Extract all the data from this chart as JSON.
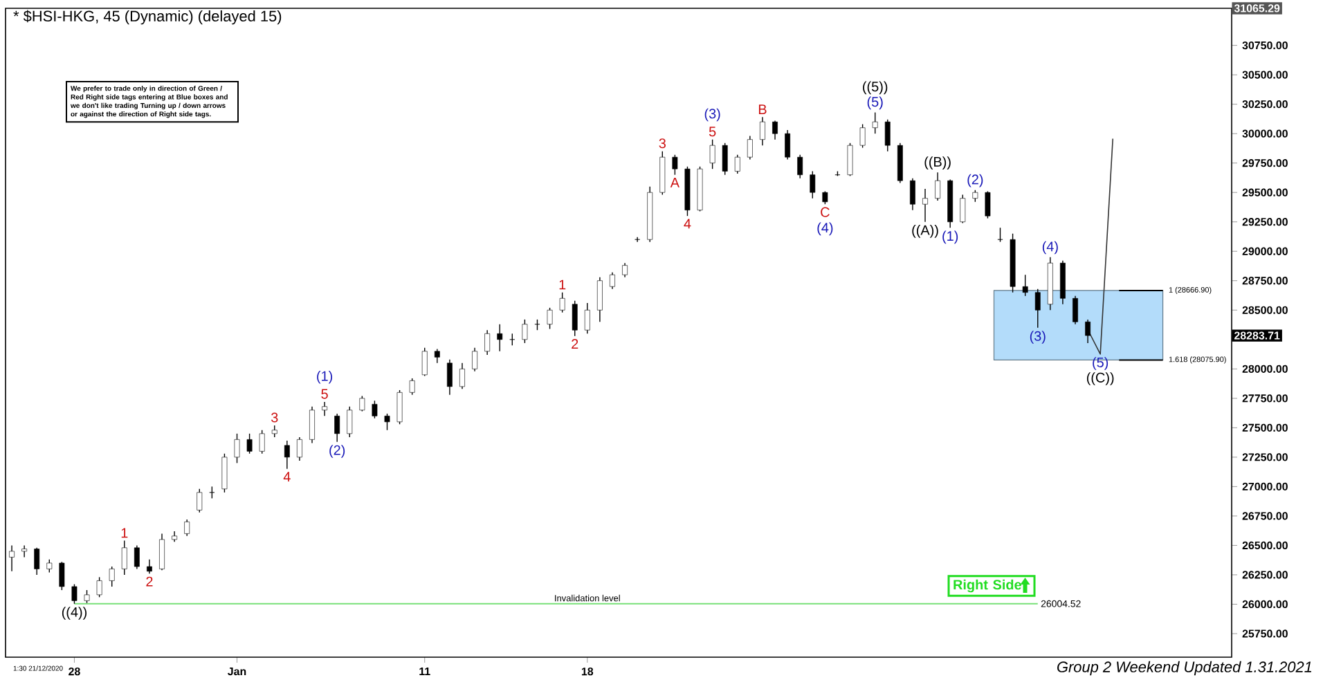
{
  "chart_data": {
    "type": "candlestick",
    "title": "* $HSI-HKG, 45 (Dynamic) (delayed 15)",
    "categories": [
      null,
      null,
      null,
      null,
      null,
      "28",
      null,
      null,
      null,
      null,
      null,
      null,
      null,
      null,
      null,
      null,
      null,
      null,
      "Jan",
      null,
      null,
      null,
      null,
      null,
      null,
      null,
      null,
      null,
      null,
      null,
      null,
      null,
      null,
      "11",
      null,
      null,
      null,
      null,
      null,
      null,
      null,
      null,
      null,
      null,
      null,
      null,
      "18",
      null,
      null,
      null,
      null,
      null,
      null,
      null,
      null,
      null,
      null,
      null,
      null,
      null,
      null,
      null,
      null,
      null,
      null,
      null,
      null,
      null,
      null,
      null,
      null,
      null,
      null,
      null,
      null,
      null,
      null,
      null,
      null,
      null,
      null,
      null,
      null,
      null,
      null,
      null,
      null,
      null,
      null,
      null,
      null,
      null,
      null,
      null,
      null,
      null,
      null,
      null
    ],
    "ohlc": [
      [
        26400,
        26500,
        26280,
        26450
      ],
      [
        26450,
        26500,
        26400,
        26470
      ],
      [
        26470,
        26480,
        26250,
        26300
      ],
      [
        26300,
        26380,
        26270,
        26350
      ],
      [
        26350,
        26360,
        26120,
        26150
      ],
      [
        26150,
        26170,
        26004,
        26030
      ],
      [
        26030,
        26120,
        26010,
        26080
      ],
      [
        26080,
        26230,
        26060,
        26200
      ],
      [
        26200,
        26320,
        26150,
        26300
      ],
      [
        26300,
        26540,
        26250,
        26480
      ],
      [
        26480,
        26500,
        26300,
        26320
      ],
      [
        26320,
        26380,
        26260,
        26280
      ],
      [
        26300,
        26600,
        26290,
        26550
      ],
      [
        26550,
        26620,
        26530,
        26580
      ],
      [
        26600,
        26720,
        26580,
        26700
      ],
      [
        26800,
        26980,
        26780,
        26950
      ],
      [
        26950,
        27000,
        26900,
        26950
      ],
      [
        26980,
        27280,
        26950,
        27250
      ],
      [
        27250,
        27450,
        27200,
        27400
      ],
      [
        27400,
        27450,
        27280,
        27300
      ],
      [
        27300,
        27480,
        27280,
        27450
      ],
      [
        27450,
        27520,
        27420,
        27480
      ],
      [
        27350,
        27390,
        27150,
        27250
      ],
      [
        27250,
        27420,
        27220,
        27400
      ],
      [
        27400,
        27680,
        27370,
        27650
      ],
      [
        27650,
        27720,
        27600,
        27680
      ],
      [
        27600,
        27620,
        27380,
        27450
      ],
      [
        27450,
        27680,
        27420,
        27650
      ],
      [
        27650,
        27770,
        27640,
        27750
      ],
      [
        27700,
        27730,
        27580,
        27600
      ],
      [
        27600,
        27620,
        27480,
        27550
      ],
      [
        27550,
        27820,
        27530,
        27800
      ],
      [
        27800,
        27920,
        27780,
        27900
      ],
      [
        27950,
        28180,
        27940,
        28150
      ],
      [
        28150,
        28170,
        28050,
        28100
      ],
      [
        28050,
        28080,
        27780,
        27850
      ],
      [
        27850,
        28050,
        27830,
        28000
      ],
      [
        28000,
        28180,
        27980,
        28150
      ],
      [
        28150,
        28330,
        28120,
        28300
      ],
      [
        28300,
        28380,
        28150,
        28250
      ],
      [
        28250,
        28300,
        28200,
        28250
      ],
      [
        28250,
        28420,
        28220,
        28380
      ],
      [
        28380,
        28420,
        28330,
        28380
      ],
      [
        28380,
        28520,
        28340,
        28500
      ],
      [
        28500,
        28650,
        28480,
        28600
      ],
      [
        28550,
        28580,
        28280,
        28330
      ],
      [
        28330,
        28560,
        28300,
        28500
      ],
      [
        28500,
        28780,
        28400,
        28750
      ],
      [
        28700,
        28820,
        28680,
        28800
      ],
      [
        28800,
        28900,
        28780,
        28880
      ],
      [
        29100,
        29120,
        29080,
        29100
      ],
      [
        29100,
        29550,
        29080,
        29500
      ],
      [
        29500,
        29850,
        29480,
        29800
      ],
      [
        29800,
        29820,
        29650,
        29700
      ],
      [
        29700,
        29720,
        29300,
        29350
      ],
      [
        29350,
        29720,
        29340,
        29700
      ],
      [
        29750,
        29950,
        29700,
        29900
      ],
      [
        29900,
        29920,
        29650,
        29680
      ],
      [
        29680,
        29820,
        29660,
        29800
      ],
      [
        29800,
        29980,
        29780,
        29950
      ],
      [
        29950,
        30140,
        29900,
        30100
      ],
      [
        30100,
        30110,
        29950,
        30000
      ],
      [
        30000,
        30030,
        29780,
        29800
      ],
      [
        29800,
        29820,
        29620,
        29650
      ],
      [
        29650,
        29680,
        29450,
        29500
      ],
      [
        29500,
        29510,
        29400,
        29420
      ],
      [
        29650,
        29680,
        29640,
        29650
      ],
      [
        29650,
        29920,
        29640,
        29900
      ],
      [
        29900,
        30080,
        29880,
        30050
      ],
      [
        30050,
        30180,
        30000,
        30100
      ],
      [
        30100,
        30120,
        29850,
        29900
      ],
      [
        29900,
        29920,
        29580,
        29600
      ],
      [
        29600,
        29620,
        29350,
        29400
      ],
      [
        29400,
        29530,
        29250,
        29450
      ],
      [
        29450,
        29670,
        29430,
        29600
      ],
      [
        29600,
        29610,
        29200,
        29250
      ],
      [
        29250,
        29480,
        29240,
        29450
      ],
      [
        29450,
        29520,
        29420,
        29500
      ],
      [
        29500,
        29510,
        29280,
        29300
      ],
      [
        29100,
        29200,
        29080,
        29100
      ],
      [
        29100,
        29150,
        28650,
        28700
      ],
      [
        28700,
        28800,
        28620,
        28650
      ],
      [
        28650,
        28680,
        28350,
        28500
      ],
      [
        28550,
        28950,
        28500,
        28900
      ],
      [
        28900,
        28920,
        28550,
        28600
      ],
      [
        28600,
        28620,
        28380,
        28400
      ],
      [
        28400,
        28420,
        28220,
        28283.71
      ],
      null,
      null,
      null,
      null,
      null,
      null,
      null,
      null,
      null,
      null,
      null
    ],
    "series": [
      {
        "type": "line",
        "values": [
          null,
          null,
          null,
          null,
          null,
          null,
          null,
          null,
          null,
          null,
          null,
          null,
          null,
          null,
          null,
          null,
          null,
          null,
          null,
          null,
          null,
          null,
          null,
          null,
          null,
          null,
          null,
          null,
          null,
          null,
          null,
          null,
          null,
          null,
          null,
          null,
          null,
          null,
          null,
          null,
          null,
          null,
          null,
          null,
          null,
          null,
          null,
          null,
          null,
          null,
          null,
          null,
          null,
          null,
          null,
          null,
          null,
          null,
          null,
          null,
          null,
          null,
          null,
          null,
          null,
          null,
          null,
          null,
          null,
          null,
          null,
          null,
          null,
          null,
          null,
          null,
          null,
          null,
          null,
          null,
          null,
          null,
          null,
          null,
          null,
          null,
          28334,
          28126,
          29957,
          null,
          null,
          null,
          null,
          null,
          null,
          null,
          null,
          null
        ],
        "color": "#333333"
      }
    ],
    "ylim": [
      25550,
      31065.29
    ],
    "yticks": [
      {
        "value": 25750,
        "label": "25750.00"
      },
      {
        "value": 26000,
        "label": "26000.00"
      },
      {
        "value": 26250,
        "label": "26250.00"
      },
      {
        "value": 26500,
        "label": "26500.00"
      },
      {
        "value": 26750,
        "label": "26750.00"
      },
      {
        "value": 27000,
        "label": "27000.00"
      },
      {
        "value": 27250,
        "label": "27250.00"
      },
      {
        "value": 27500,
        "label": "27500.00"
      },
      {
        "value": 27750,
        "label": "27750.00"
      },
      {
        "value": 28000,
        "label": "28000.00"
      },
      {
        "value": 28250,
        "label": null
      },
      {
        "value": 28500,
        "label": "28500.00"
      },
      {
        "value": 28750,
        "label": "28750.00"
      },
      {
        "value": 29000,
        "label": "29000.00"
      },
      {
        "value": 29250,
        "label": "29250.00"
      },
      {
        "value": 29500,
        "label": "29500.00"
      },
      {
        "value": 29750,
        "label": "29750.00"
      },
      {
        "value": 30000,
        "label": "30000.00"
      },
      {
        "value": 30250,
        "label": "30250.00"
      },
      {
        "value": 30500,
        "label": "30500.00"
      },
      {
        "value": 30750,
        "label": "30750.00"
      }
    ],
    "bands": [
      {
        "axis": "y",
        "from": 28075.9,
        "to": 28666.9,
        "color": "#b3dcfa"
      }
    ],
    "ref_lines": [
      {
        "axis": "y",
        "value": 28666.9,
        "label": "1 (28666.90)",
        "color": "#000000"
      },
      {
        "axis": "y",
        "value": 28075.9,
        "label": "1.618 (28075.90)",
        "color": "#000000"
      },
      {
        "axis": "y",
        "value": 26004.52,
        "label": "Invalidation level",
        "color": "#77e077"
      }
    ],
    "annotations": [
      "We prefer to trade only in direction of Green / Red Right side tags entering at Blue boxes and we don't like trading Turning up / down arrows or against the direction of Right side tags.",
      "Right Side",
      "Group 2 Weekend Updated 1.31.2021",
      "1:30 21/12/2020",
      "31065.29",
      "28283.71",
      "26004.52",
      {
        "text": "((4))",
        "y": 26004
      },
      {
        "text": "1",
        "y": 26540
      },
      {
        "text": "2",
        "y": 26260
      },
      {
        "text": "3",
        "y": 27520
      },
      {
        "text": "4",
        "y": 27150
      },
      {
        "text": "5",
        "y": 27720
      },
      {
        "text": "(1)",
        "y": 27720
      },
      {
        "text": "(2)",
        "y": 27380
      },
      {
        "text": "1",
        "y": 28650
      },
      {
        "text": "2",
        "y": 28280
      },
      {
        "text": "3",
        "y": 29850
      },
      {
        "text": "4",
        "y": 29300
      },
      {
        "text": "5",
        "y": 29950
      },
      {
        "text": "(3)",
        "y": 29950
      },
      {
        "text": "A",
        "y": 29650
      },
      {
        "text": "B",
        "y": 30140
      },
      {
        "text": "C",
        "y": 29400
      },
      {
        "text": "(4)",
        "y": 29400
      },
      {
        "text": "(5)",
        "y": 30180
      },
      {
        "text": "((5))",
        "y": 30180
      },
      {
        "text": "((B))",
        "y": 29670
      },
      {
        "text": "(2)",
        "y": 29520
      },
      {
        "text": "((A))",
        "y": 29250
      },
      {
        "text": "(1)",
        "y": 29200
      },
      {
        "text": "(4)",
        "y": 28950
      },
      {
        "text": "(3)",
        "y": 28350
      },
      {
        "text": "(5)",
        "y": 28126
      },
      {
        "text": "((C))",
        "y": 28126
      }
    ]
  }
}
